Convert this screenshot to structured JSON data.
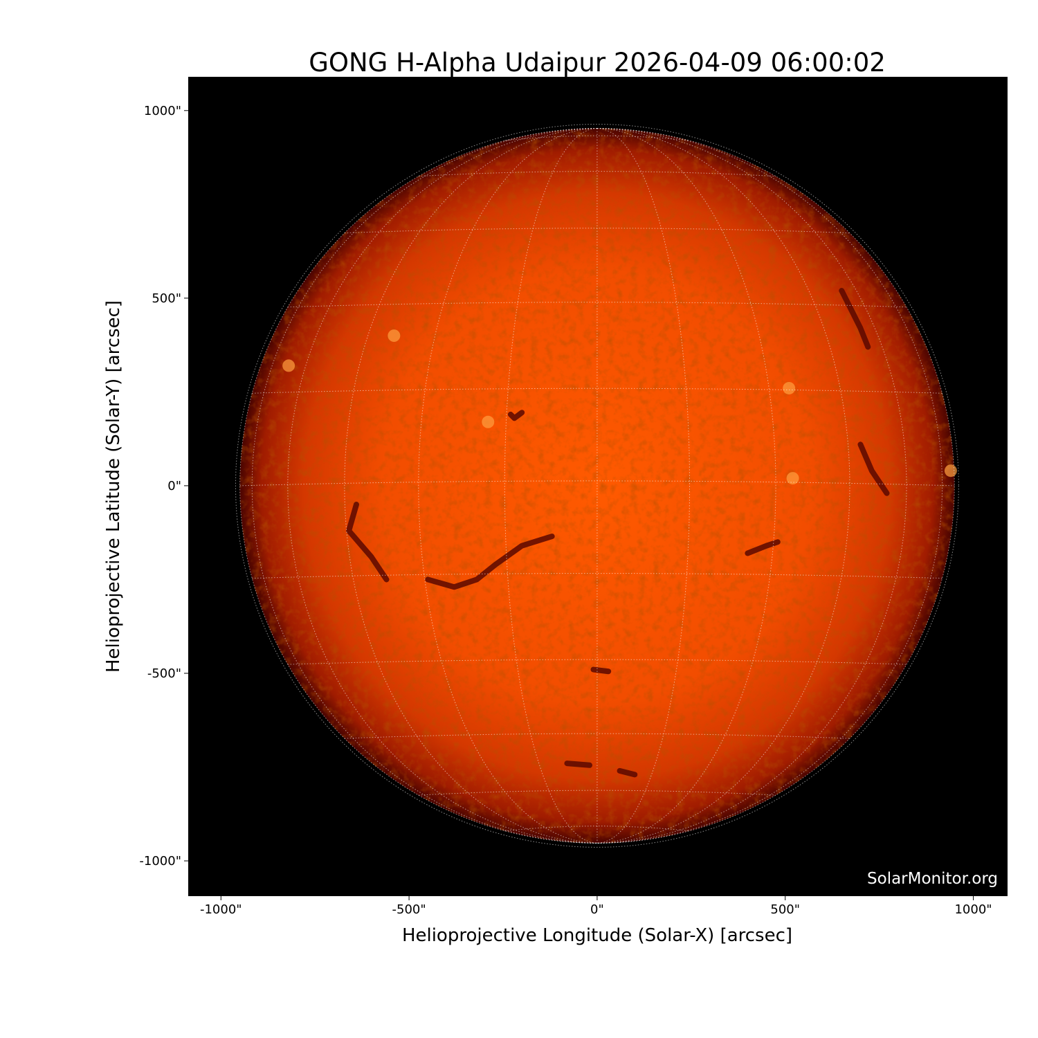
{
  "chart_data": {
    "type": "image",
    "title": "GONG H-Alpha Udaipur 2026-04-09 06:00:02",
    "xlabel": "Helioprojective Longitude (Solar-X) [arcsec]",
    "ylabel": "Helioprojective Latitude (Solar-Y) [arcsec]",
    "xlim": [
      -1087,
      1091
    ],
    "ylim": [
      -1094,
      1090
    ],
    "xticks": [
      -1000,
      -500,
      0,
      500,
      1000
    ],
    "yticks": [
      -1000,
      -500,
      0,
      500,
      1000
    ],
    "xtick_labels": [
      "-1000\"",
      "-500\"",
      "0\"",
      "500\"",
      "1000\""
    ],
    "ytick_labels": [
      "-1000\"",
      "-500\"",
      "0\"",
      "500\"",
      "1000\""
    ],
    "solar_radius_arcsec": 950,
    "grid": true,
    "grid_spacing_deg": 15,
    "colormap": "H-alpha red-orange",
    "watermark": "SolarMonitor.org",
    "colors": {
      "disk_center": "#ff5a00",
      "disk_limb": "#6a0800",
      "background": "#000000",
      "grid": "#ffffff"
    }
  }
}
